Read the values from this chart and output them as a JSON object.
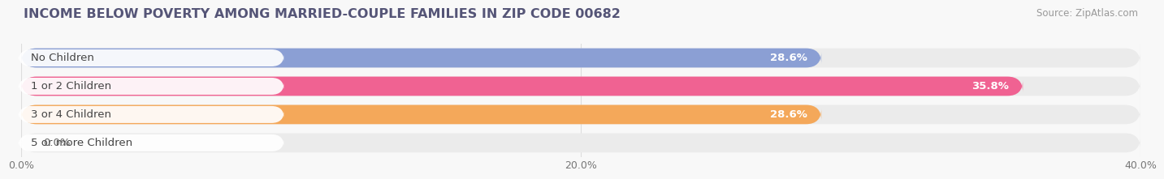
{
  "title": "INCOME BELOW POVERTY AMONG MARRIED-COUPLE FAMILIES IN ZIP CODE 00682",
  "source": "Source: ZipAtlas.com",
  "categories": [
    "No Children",
    "1 or 2 Children",
    "3 or 4 Children",
    "5 or more Children"
  ],
  "values": [
    28.6,
    35.8,
    28.6,
    0.0
  ],
  "bar_colors": [
    "#8b9fd4",
    "#f06292",
    "#f4a85a",
    "#f48a8a"
  ],
  "bar_bg_color": "#ebebeb",
  "value_labels": [
    "28.6%",
    "35.8%",
    "28.6%",
    "0.0%"
  ],
  "xlim": [
    0,
    40
  ],
  "xticks": [
    0.0,
    20.0,
    40.0
  ],
  "xtick_labels": [
    "0.0%",
    "20.0%",
    "40.0%"
  ],
  "title_fontsize": 11.5,
  "label_fontsize": 9.5,
  "tick_fontsize": 9,
  "source_fontsize": 8.5,
  "bar_height": 0.68,
  "bg_color": "#f8f8f8",
  "title_color": "#555577",
  "label_color": "#444444",
  "value_color_inside": "#ffffff",
  "value_color_outside": "#666666",
  "grid_color": "#dddddd",
  "label_bg_color": "#ffffff"
}
